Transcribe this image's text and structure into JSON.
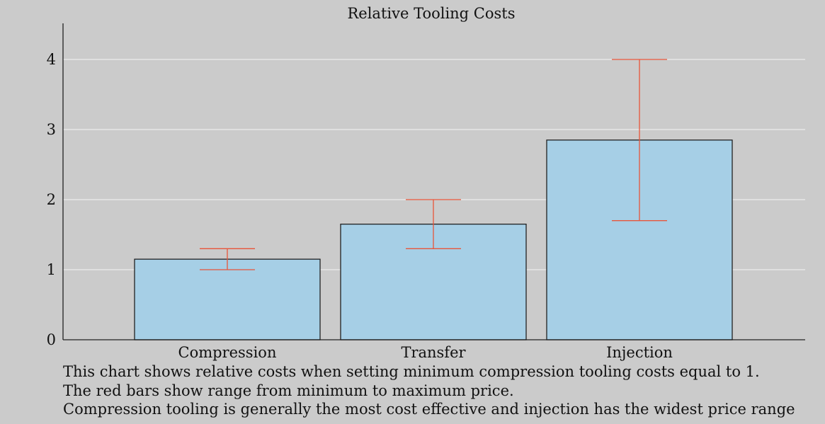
{
  "chart_data": {
    "type": "bar",
    "title": "Relative Tooling Costs",
    "categories": [
      "Compression",
      "Transfer",
      "Injection"
    ],
    "values": [
      1.15,
      1.65,
      2.85
    ],
    "ranges": [
      {
        "min": 1.0,
        "max": 1.3
      },
      {
        "min": 1.3,
        "max": 2.0
      },
      {
        "min": 1.7,
        "max": 4.0
      }
    ],
    "xlabel": "",
    "ylabel": "",
    "ylim": [
      0,
      4.5
    ],
    "yticks": [
      0,
      1,
      2,
      3,
      4
    ],
    "grid": true,
    "colors": {
      "bar_fill": "#a6cfe6",
      "bar_stroke": "#222222",
      "error_bar": "#e8553a",
      "grid": "#ececec",
      "background": "#cbcbcb"
    }
  },
  "caption": {
    "lines": [
      "This chart shows relative costs when setting minimum compression tooling costs equal to 1.",
      "The red bars show range from minimum to maximum price.",
      "Compression tooling is generally the most cost effective and injection has the widest price range"
    ]
  }
}
